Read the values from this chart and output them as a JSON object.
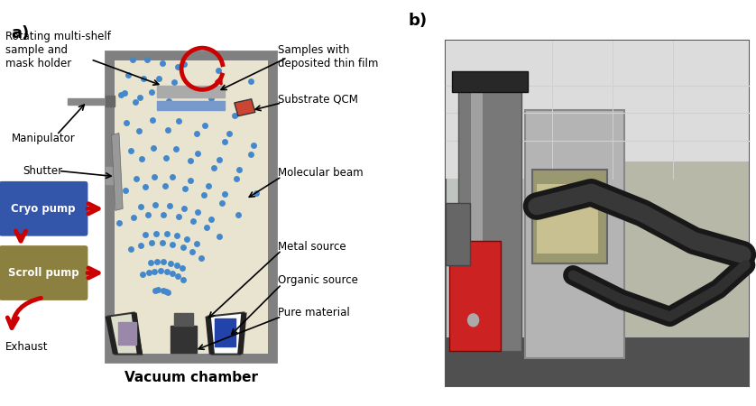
{
  "fig_width": 8.38,
  "fig_height": 4.5,
  "dpi": 100,
  "bg_color": "#ffffff",
  "label_a": "a)",
  "label_b": "b)",
  "vacuum_chamber_label": "Vacuum chamber",
  "annotations": {
    "rotating": "Rotating multi-shelf\nsample and\nmask holder",
    "samples": "Samples with\ndeposited thin film",
    "substrate": "Substrate QCM",
    "molecular": "Molecular beam",
    "metal_source": "Metal source",
    "organic_source": "Organic source",
    "pure_material": "Pure material",
    "manipulator": "Manipulator",
    "shutter": "Shutter",
    "cryo_pump": "Cryo pump",
    "scroll_pump": "Scroll pump",
    "exhaust": "Exhaust"
  },
  "colors": {
    "chamber_wall": "#808080",
    "chamber_interior": "#e8e4d0",
    "blue_dots": "#4488cc",
    "cryo_pump_bg": "#3355aa",
    "scroll_pump_bg": "#8b8040",
    "red_arrow": "#cc0000",
    "dark_gray": "#333333",
    "light_blue": "#6699cc",
    "shelf_blue": "#7799cc",
    "shutter_gray": "#999999",
    "source_dark": "#444444",
    "source_blue": "#4466aa",
    "source_purple": "#9988aa"
  }
}
